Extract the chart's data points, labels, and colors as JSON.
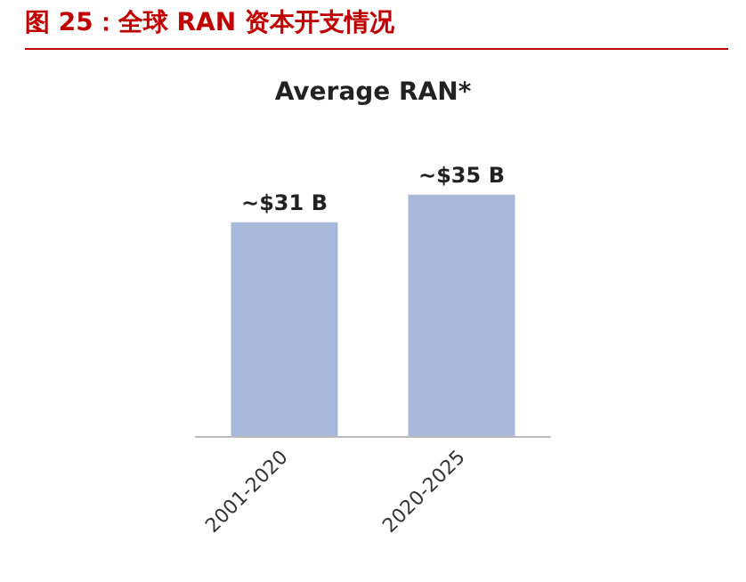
{
  "chart_data": {
    "type": "bar",
    "title": "图 25：全球 RAN 资本开支情况",
    "subtitle": "Average RAN*",
    "categories": [
      "2001-2020",
      "2020-2025"
    ],
    "values": [
      31,
      35
    ],
    "value_labels": [
      "~$31 B",
      "~$35 B"
    ],
    "color": "#a9b8d9"
  }
}
